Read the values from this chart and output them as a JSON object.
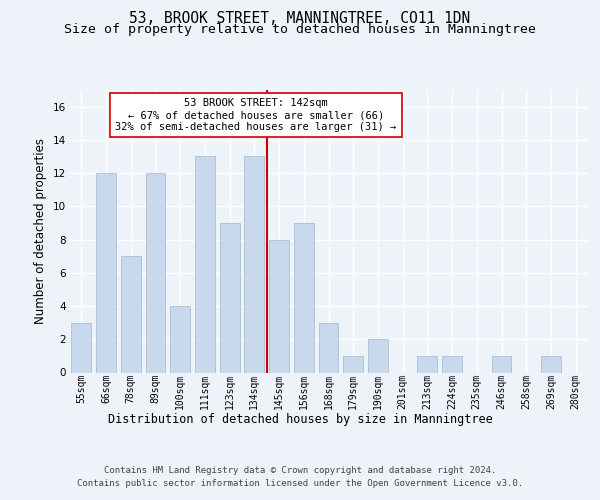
{
  "title_line1": "53, BROOK STREET, MANNINGTREE, CO11 1DN",
  "title_line2": "Size of property relative to detached houses in Manningtree",
  "xlabel": "Distribution of detached houses by size in Manningtree",
  "ylabel": "Number of detached properties",
  "footer_line1": "Contains HM Land Registry data © Crown copyright and database right 2024.",
  "footer_line2": "Contains public sector information licensed under the Open Government Licence v3.0.",
  "categories": [
    "55sqm",
    "66sqm",
    "78sqm",
    "89sqm",
    "100sqm",
    "111sqm",
    "123sqm",
    "134sqm",
    "145sqm",
    "156sqm",
    "168sqm",
    "179sqm",
    "190sqm",
    "201sqm",
    "213sqm",
    "224sqm",
    "235sqm",
    "246sqm",
    "258sqm",
    "269sqm",
    "280sqm"
  ],
  "values": [
    3,
    12,
    7,
    12,
    4,
    13,
    9,
    13,
    8,
    9,
    3,
    1,
    2,
    0,
    1,
    1,
    0,
    1,
    0,
    1,
    0
  ],
  "bar_color": "#c8d9ed",
  "bar_edge_color": "#a0b8d0",
  "bar_width": 0.8,
  "vline_index": 7,
  "vline_color": "#cc0000",
  "annotation_text": "53 BROOK STREET: 142sqm\n← 67% of detached houses are smaller (66)\n32% of semi-detached houses are larger (31) →",
  "ylim": [
    0,
    17
  ],
  "yticks": [
    0,
    2,
    4,
    6,
    8,
    10,
    12,
    14,
    16
  ],
  "background_color": "#eef2f9",
  "grid_color": "#ffffff",
  "title_fontsize": 10.5,
  "subtitle_fontsize": 9.5,
  "tick_fontsize": 7,
  "ylabel_fontsize": 8.5,
  "xlabel_fontsize": 8.5,
  "footer_fontsize": 6.5
}
